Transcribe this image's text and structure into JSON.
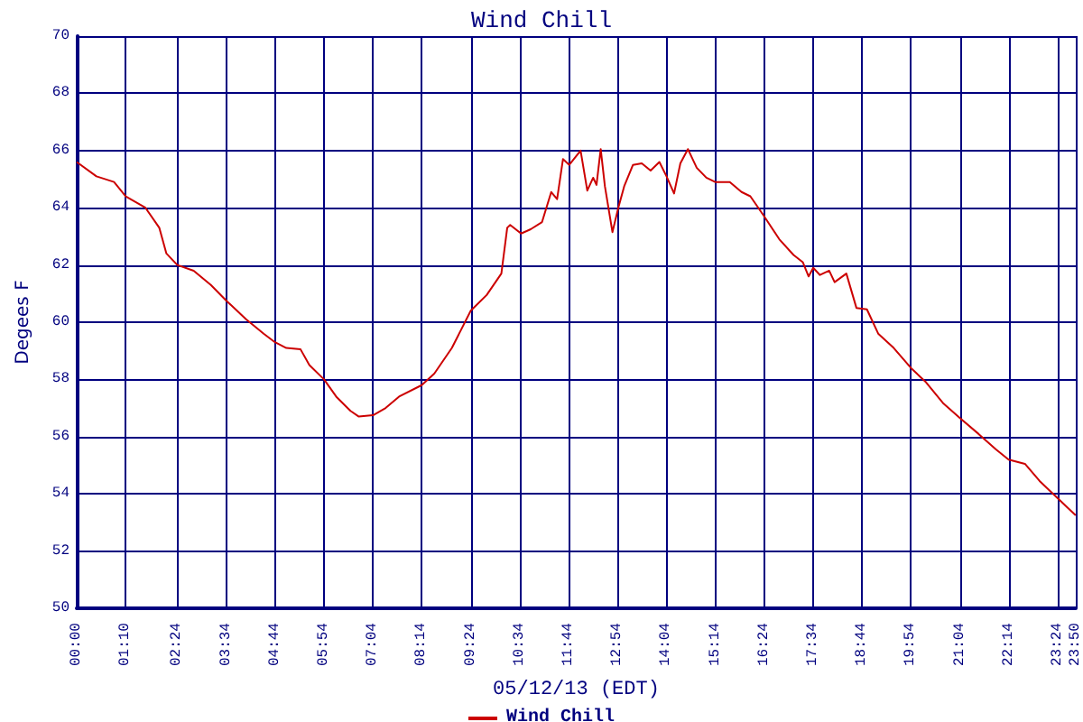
{
  "chart_data": {
    "type": "line",
    "title": "Wind Chill",
    "xlabel": "05/12/13 (EDT)",
    "ylabel": "Degees F",
    "xlim": [
      0,
      23.833
    ],
    "xticks": [
      {
        "value": 0,
        "label": "00:00"
      },
      {
        "value": 1.167,
        "label": "01:10"
      },
      {
        "value": 2.4,
        "label": "02:24"
      },
      {
        "value": 3.567,
        "label": "03:34"
      },
      {
        "value": 4.733,
        "label": "04:44"
      },
      {
        "value": 5.9,
        "label": "05:54"
      },
      {
        "value": 7.067,
        "label": "07:04"
      },
      {
        "value": 8.233,
        "label": "08:14"
      },
      {
        "value": 9.4,
        "label": "09:24"
      },
      {
        "value": 10.567,
        "label": "10:34"
      },
      {
        "value": 11.733,
        "label": "11:44"
      },
      {
        "value": 12.9,
        "label": "12:54"
      },
      {
        "value": 14.067,
        "label": "14:04"
      },
      {
        "value": 15.233,
        "label": "15:14"
      },
      {
        "value": 16.4,
        "label": "16:24"
      },
      {
        "value": 17.567,
        "label": "17:34"
      },
      {
        "value": 18.733,
        "label": "18:44"
      },
      {
        "value": 19.9,
        "label": "19:54"
      },
      {
        "value": 21.067,
        "label": "21:04"
      },
      {
        "value": 22.233,
        "label": "22:14"
      },
      {
        "value": 23.4,
        "label": "23:24"
      },
      {
        "value": 23.833,
        "label": "23:50"
      }
    ],
    "ylim": [
      50,
      70
    ],
    "yticks": [
      50,
      52,
      54,
      56,
      58,
      60,
      62,
      64,
      66,
      68,
      70
    ],
    "grid": true,
    "legend": "bottom",
    "marker": "none",
    "line_style": "solid",
    "series": [
      {
        "name": "Wind Chill",
        "color": "#cc0000",
        "x": [
          0,
          0.47,
          0.89,
          1.17,
          1.64,
          1.97,
          2.14,
          2.4,
          2.79,
          3.2,
          3.57,
          4.04,
          4.46,
          4.73,
          5.0,
          5.34,
          5.55,
          5.9,
          6.19,
          6.53,
          6.73,
          7.07,
          7.37,
          7.69,
          8.23,
          8.53,
          8.95,
          9.4,
          9.78,
          10.13,
          10.27,
          10.34,
          10.6,
          10.83,
          11.1,
          11.32,
          11.46,
          11.6,
          11.75,
          12.02,
          12.18,
          12.32,
          12.4,
          12.5,
          12.6,
          12.78,
          12.92,
          13.06,
          13.27,
          13.48,
          13.69,
          13.9,
          14.07,
          14.25,
          14.4,
          14.58,
          14.79,
          15.02,
          15.23,
          15.58,
          15.86,
          16.07,
          16.4,
          16.76,
          17.1,
          17.32,
          17.46,
          17.57,
          17.73,
          17.95,
          18.08,
          18.36,
          18.6,
          18.85,
          19.12,
          19.49,
          19.9,
          20.26,
          20.68,
          21.07,
          21.51,
          21.93,
          22.23,
          22.62,
          22.97,
          23.4,
          23.83
        ],
        "values": [
          65.6,
          65.1,
          64.9,
          64.4,
          64.0,
          63.3,
          62.4,
          62.0,
          61.8,
          61.3,
          60.75,
          60.1,
          59.6,
          59.3,
          59.1,
          59.05,
          58.5,
          58.0,
          57.4,
          56.9,
          56.7,
          56.75,
          57.0,
          57.4,
          57.8,
          58.2,
          59.1,
          60.4,
          60.95,
          61.7,
          63.3,
          63.4,
          63.1,
          63.25,
          63.5,
          64.55,
          64.3,
          65.7,
          65.5,
          66.0,
          64.6,
          65.05,
          64.8,
          66.05,
          64.75,
          63.15,
          64.0,
          64.75,
          65.5,
          65.55,
          65.3,
          65.6,
          65.1,
          64.5,
          65.55,
          66.05,
          65.4,
          65.05,
          64.9,
          64.9,
          64.55,
          64.4,
          63.7,
          62.9,
          62.35,
          62.1,
          61.6,
          61.9,
          61.65,
          61.8,
          61.4,
          61.7,
          60.5,
          60.45,
          59.6,
          59.1,
          58.4,
          57.9,
          57.15,
          56.65,
          56.1,
          55.55,
          55.2,
          55.05,
          54.45,
          53.85,
          53.25
        ]
      }
    ]
  }
}
